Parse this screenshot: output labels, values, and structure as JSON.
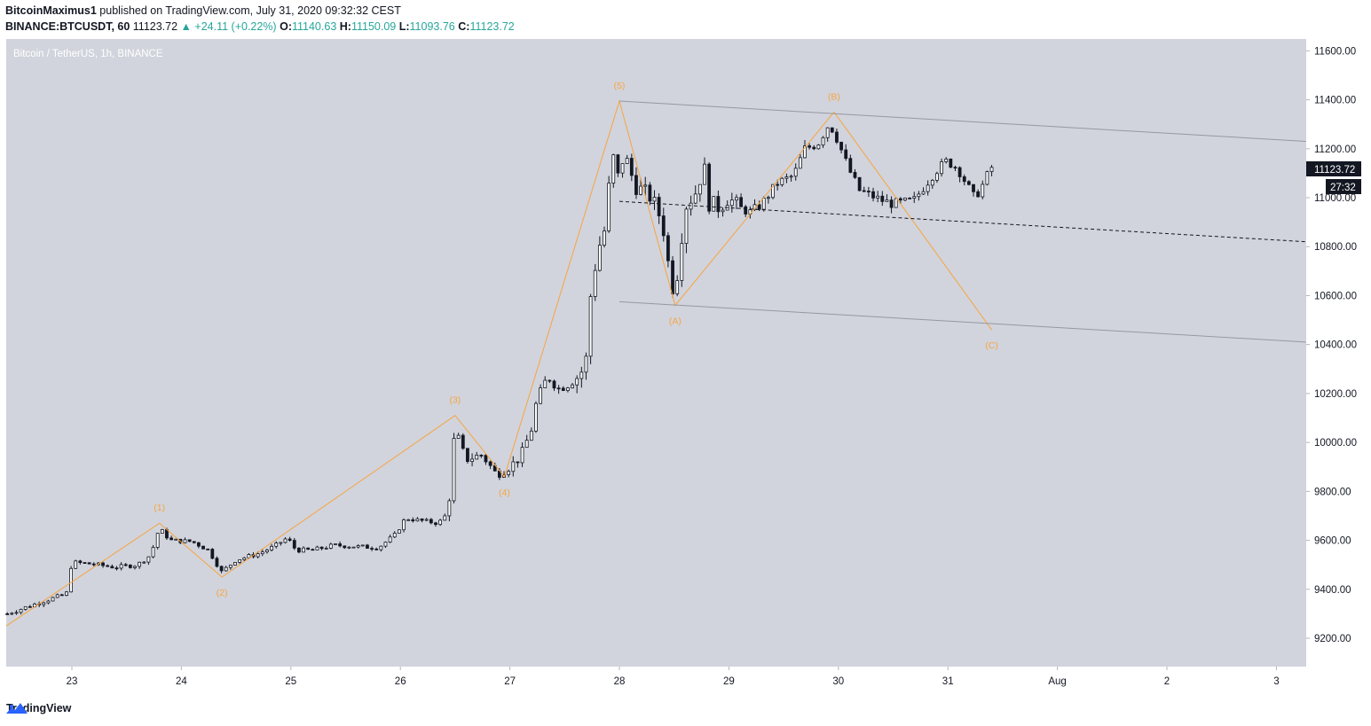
{
  "header": {
    "author": "BitcoinMaximus1",
    "published_text": "published on TradingView.com, July 31, 2020 09:32:32 CEST",
    "symbol": "BINANCE:BTCUSDT, 60",
    "last": "11123.72",
    "change": "+24.11 (+0.22%)",
    "o_label": "O:",
    "o_value": "11140.63",
    "h_label": "H:",
    "h_value": "11150.09",
    "l_label": "L:",
    "l_value": "11093.76",
    "c_label": "C:",
    "c_value": "11123.72"
  },
  "chart_title": "Bitcoin / TetherUS, 1h, BINANCE",
  "price_tag": "11123.72",
  "countdown_tag": "27:32",
  "footer": {
    "brand": "TradingView"
  },
  "colors": {
    "background": "#d1d4dc",
    "wave": "#f7a443",
    "channel": "#9598a1",
    "candle": "#131722",
    "up_text": "#26a69a"
  },
  "chart_data": {
    "type": "candlestick",
    "title": "Bitcoin / TetherUS, 1h, BINANCE",
    "x_ticks": [
      "23",
      "24",
      "25",
      "26",
      "27",
      "28",
      "29",
      "30",
      "31",
      "Aug",
      "2",
      "3"
    ],
    "y_ticks": [
      "9200.00",
      "9400.00",
      "9600.00",
      "9800.00",
      "10000.00",
      "10200.00",
      "10400.00",
      "10600.00",
      "10800.00",
      "11000.00",
      "11200.00",
      "11400.00",
      "11600.00"
    ],
    "ylim": [
      8990,
      11665
    ],
    "xlim_days": [
      22.4,
      34.27
    ],
    "close_path": [
      [
        22.41,
        9300
      ],
      [
        22.6,
        9330
      ],
      [
        22.8,
        9360
      ],
      [
        22.95,
        9380
      ],
      [
        23.0,
        9510
      ],
      [
        23.15,
        9505
      ],
      [
        23.4,
        9490
      ],
      [
        23.6,
        9500
      ],
      [
        23.72,
        9540
      ],
      [
        23.8,
        9650
      ],
      [
        23.9,
        9600
      ],
      [
        24.1,
        9595
      ],
      [
        24.25,
        9560
      ],
      [
        24.37,
        9470
      ],
      [
        24.5,
        9520
      ],
      [
        24.7,
        9545
      ],
      [
        24.85,
        9575
      ],
      [
        24.97,
        9610
      ],
      [
        25.05,
        9560
      ],
      [
        25.2,
        9560
      ],
      [
        25.4,
        9580
      ],
      [
        25.6,
        9575
      ],
      [
        25.8,
        9570
      ],
      [
        25.95,
        9620
      ],
      [
        26.05,
        9690
      ],
      [
        26.2,
        9680
      ],
      [
        26.35,
        9670
      ],
      [
        26.42,
        9700
      ],
      [
        26.47,
        9820
      ],
      [
        26.5,
        10060
      ],
      [
        26.6,
        9930
      ],
      [
        26.75,
        9950
      ],
      [
        26.88,
        9870
      ],
      [
        27.0,
        9900
      ],
      [
        27.1,
        9940
      ],
      [
        27.2,
        10050
      ],
      [
        27.25,
        10170
      ],
      [
        27.35,
        10270
      ],
      [
        27.45,
        10220
      ],
      [
        27.55,
        10240
      ],
      [
        27.65,
        10280
      ],
      [
        27.7,
        10330
      ],
      [
        27.75,
        10640
      ],
      [
        27.82,
        10800
      ],
      [
        27.88,
        10880
      ],
      [
        27.94,
        11200
      ],
      [
        27.98,
        11060
      ],
      [
        28.05,
        11180
      ],
      [
        28.15,
        11050
      ],
      [
        28.3,
        11000
      ],
      [
        28.4,
        10900
      ],
      [
        28.45,
        10740
      ],
      [
        28.5,
        10620
      ],
      [
        28.55,
        10720
      ],
      [
        28.6,
        10960
      ],
      [
        28.7,
        11020
      ],
      [
        28.78,
        11130
      ],
      [
        28.82,
        10980
      ],
      [
        28.92,
        10960
      ],
      [
        29.0,
        11000
      ],
      [
        29.1,
        10960
      ],
      [
        29.2,
        10940
      ],
      [
        29.3,
        10970
      ],
      [
        29.45,
        11060
      ],
      [
        29.6,
        11090
      ],
      [
        29.7,
        11200
      ],
      [
        29.82,
        11220
      ],
      [
        29.92,
        11300
      ],
      [
        29.97,
        11270
      ],
      [
        30.1,
        11120
      ],
      [
        30.2,
        11030
      ],
      [
        30.3,
        11010
      ],
      [
        30.4,
        10990
      ],
      [
        30.5,
        10975
      ],
      [
        30.6,
        10980
      ],
      [
        30.7,
        10990
      ],
      [
        30.8,
        11050
      ],
      [
        30.9,
        11110
      ],
      [
        31.0,
        11150
      ],
      [
        31.1,
        11120
      ],
      [
        31.2,
        11040
      ],
      [
        31.25,
        11000
      ],
      [
        31.3,
        11030
      ],
      [
        31.35,
        11070
      ],
      [
        31.4,
        11123.72
      ]
    ],
    "wave_points": [
      {
        "label": "",
        "x": 22.4,
        "y": 9250
      },
      {
        "label": "(1)",
        "x": 23.8,
        "y": 9670
      },
      {
        "label": "(2)",
        "x": 24.37,
        "y": 9450
      },
      {
        "label": "(3)",
        "x": 26.5,
        "y": 10110
      },
      {
        "label": "(4)",
        "x": 26.95,
        "y": 9860
      },
      {
        "label": "(5)",
        "x": 28.0,
        "y": 11395
      },
      {
        "label": "(A)",
        "x": 28.51,
        "y": 10560
      },
      {
        "label": "(B)",
        "x": 29.96,
        "y": 11350
      },
      {
        "label": "(C)",
        "x": 31.4,
        "y": 10460
      }
    ],
    "channel_upper": {
      "x0": 28.0,
      "y0": 11395,
      "x1": 34.27,
      "y1": 11230
    },
    "channel_lower": {
      "x0": 28.0,
      "y0": 10575,
      "x1": 34.27,
      "y1": 10410
    },
    "channel_mid": {
      "x0": 28.0,
      "y0": 10985,
      "x1": 34.27,
      "y1": 10820
    },
    "last_price": 11123.72
  }
}
